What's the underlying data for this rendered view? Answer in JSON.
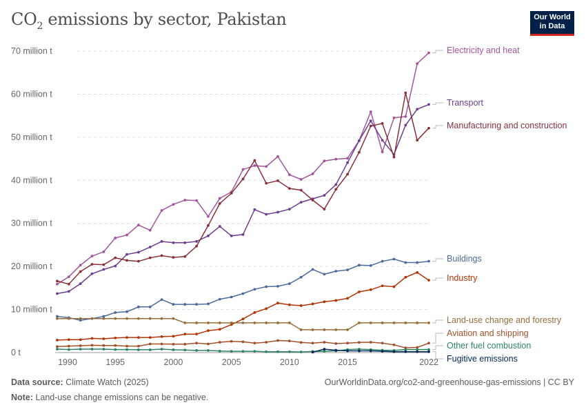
{
  "header": {
    "title_prefix": "CO",
    "title_sub": "2",
    "title_rest": " emissions by sector, Pakistan",
    "logo_line1": "Our World",
    "logo_line2": "in Data"
  },
  "footer": {
    "source_label": "Data source:",
    "source": "Climate Watch (2025)",
    "url": "OurWorldinData.org/co2-and-greenhouse-gas-emissions | CC BY",
    "note_label": "Note:",
    "note": "Land-use change emissions can be negative."
  },
  "chart_data": {
    "type": "line",
    "title": "CO₂ emissions by sector, Pakistan",
    "x": [
      1990,
      1991,
      1992,
      1993,
      1994,
      1995,
      1996,
      1997,
      1998,
      1999,
      2000,
      2001,
      2002,
      2003,
      2004,
      2005,
      2006,
      2007,
      2008,
      2009,
      2010,
      2011,
      2012,
      2013,
      2014,
      2015,
      2016,
      2017,
      2018,
      2019,
      2020,
      2021,
      2022
    ],
    "xticks": [
      1990,
      1995,
      2000,
      2005,
      2010,
      2015,
      2022
    ],
    "yticks": [
      0,
      10,
      20,
      30,
      40,
      50,
      60,
      70
    ],
    "ytick_labels": [
      "0 t",
      "10 million t",
      "20 million t",
      "30 million t",
      "40 million t",
      "50 million t",
      "60 million t",
      "70 million t"
    ],
    "ylim": [
      0,
      70
    ],
    "yunit": "million t",
    "grid": "horizontal dashed",
    "legend": "right, inline labels",
    "series": [
      {
        "name": "Electricity and heat",
        "color": "#a2559c",
        "values": [
          15.9,
          17.6,
          20.3,
          22.4,
          23.4,
          26.6,
          27.3,
          29.6,
          28.4,
          33.0,
          34.4,
          35.4,
          35.3,
          31.6,
          35.8,
          37.3,
          42.5,
          43.4,
          43.2,
          45.5,
          41.3,
          40.2,
          41.5,
          44.5,
          44.9,
          45.1,
          49.2,
          55.9,
          46.6,
          54.5,
          54.8,
          67.1,
          69.6
        ]
      },
      {
        "name": "Transport",
        "color": "#6d3e91",
        "values": [
          13.7,
          14.2,
          16.0,
          18.3,
          19.3,
          20.1,
          22.8,
          23.3,
          24.5,
          25.8,
          25.5,
          25.5,
          25.8,
          27.1,
          29.3,
          27.1,
          27.4,
          33.2,
          32.1,
          32.6,
          33.3,
          34.9,
          35.7,
          36.5,
          39.0,
          44.1,
          49.2,
          53.8,
          49.3,
          46.0,
          52.8,
          56.5,
          57.6
        ]
      },
      {
        "name": "Manufacturing and construction",
        "color": "#883039",
        "values": [
          16.6,
          15.9,
          18.8,
          20.5,
          20.4,
          22.0,
          21.4,
          21.2,
          22.0,
          22.5,
          22.1,
          22.3,
          24.7,
          29.5,
          34.6,
          37.0,
          40.3,
          44.6,
          39.3,
          39.9,
          38.1,
          37.7,
          35.4,
          33.3,
          37.9,
          41.4,
          46.5,
          52.6,
          53.2,
          45.4,
          60.3,
          49.3,
          52.1
        ]
      },
      {
        "name": "Buildings",
        "color": "#4c6a9c",
        "values": [
          8.4,
          8.1,
          7.5,
          7.9,
          8.4,
          9.3,
          9.5,
          10.6,
          10.6,
          12.3,
          11.2,
          11.2,
          11.2,
          11.3,
          12.4,
          12.9,
          13.7,
          14.7,
          15.3,
          15.4,
          16.0,
          17.5,
          19.3,
          18.2,
          18.9,
          19.2,
          20.3,
          20.2,
          21.2,
          21.7,
          20.9,
          20.9,
          21.2
        ]
      },
      {
        "name": "Industry",
        "color": "#b13507",
        "values": [
          2.9,
          3.0,
          3.0,
          3.3,
          3.2,
          3.4,
          3.5,
          3.5,
          3.5,
          3.7,
          3.8,
          4.3,
          4.3,
          5.1,
          5.4,
          6.5,
          7.8,
          9.3,
          10.2,
          11.5,
          11.1,
          10.9,
          11.3,
          11.8,
          12.1,
          12.6,
          14.1,
          14.6,
          15.5,
          15.3,
          17.5,
          18.6,
          16.8
        ]
      },
      {
        "name": "Land-use change and forestry",
        "color": "#996d39",
        "values": [
          7.9,
          7.9,
          7.9,
          7.9,
          7.9,
          7.9,
          7.9,
          7.9,
          7.9,
          7.9,
          7.9,
          6.9,
          6.9,
          6.9,
          6.9,
          6.9,
          6.9,
          6.9,
          6.9,
          6.9,
          6.9,
          5.3,
          5.3,
          5.3,
          5.3,
          5.3,
          6.9,
          6.9,
          6.9,
          6.9,
          6.9,
          6.9,
          6.9
        ]
      },
      {
        "name": "Aviation and shipping",
        "color": "#a2502b",
        "values": [
          1.4,
          1.5,
          1.6,
          1.7,
          1.65,
          1.65,
          1.5,
          1.5,
          2.0,
          2.0,
          1.95,
          1.95,
          2.2,
          2.0,
          2.4,
          2.6,
          2.5,
          2.2,
          2.4,
          2.8,
          2.7,
          2.35,
          2.2,
          2.4,
          2.1,
          2.2,
          2.35,
          2.4,
          2.2,
          1.8,
          1.1,
          1.2,
          2.2
        ]
      },
      {
        "name": "Other fuel combustion",
        "color": "#2c8465",
        "values": [
          0.8,
          0.7,
          0.8,
          0.8,
          0.8,
          0.7,
          0.7,
          0.65,
          0.65,
          0.8,
          0.65,
          0.6,
          0.5,
          0.5,
          0.35,
          0.3,
          0.3,
          0.3,
          0.2,
          0.2,
          0.2,
          0.15,
          0.25,
          0.3,
          0.4,
          0.7,
          0.8,
          0.7,
          0.55,
          0.5,
          0.7,
          0.7,
          0.7
        ]
      },
      {
        "name": "Fugitive emissions",
        "color": "#00295b",
        "values": [
          null,
          null,
          null,
          null,
          null,
          null,
          null,
          null,
          null,
          null,
          null,
          null,
          null,
          null,
          null,
          null,
          null,
          null,
          null,
          null,
          null,
          null,
          0.1,
          0.8,
          0.55,
          0.4,
          0.4,
          0.4,
          0.3,
          0.2,
          0.2,
          0.2,
          0.2
        ]
      }
    ]
  }
}
